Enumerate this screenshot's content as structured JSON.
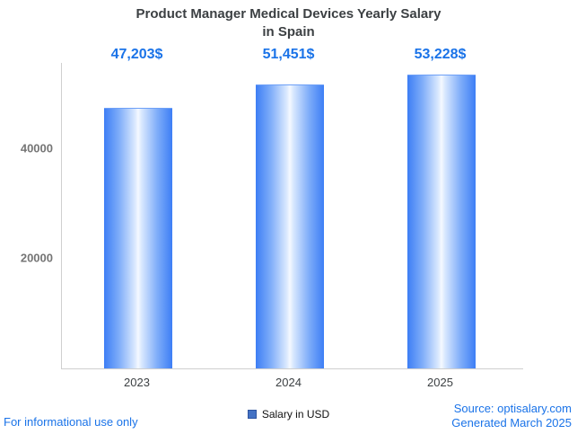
{
  "title": {
    "line1": "Product Manager Medical Devices Yearly Salary",
    "line2": "in Spain"
  },
  "chart_data": {
    "type": "bar",
    "title": "Product Manager Medical Devices Yearly Salary in Spain",
    "categories": [
      "2023",
      "2024",
      "2025"
    ],
    "values": [
      47203,
      51451,
      53228
    ],
    "value_labels": [
      "47,203$",
      "51,451$",
      "53,228$"
    ],
    "xlabel": "",
    "ylabel": "",
    "ylim": [
      0,
      55500
    ],
    "yticks": [
      20000,
      40000
    ],
    "ytick_labels": [
      "20000",
      "40000"
    ],
    "grid": false,
    "legend_position": "bottom",
    "legend": [
      "Salary in USD"
    ],
    "bar_gradient": [
      "#3d7ef5",
      "#f5f9ff",
      "#3d7ef5"
    ],
    "value_label_color": "#1a73e8"
  },
  "legend": {
    "label": "Salary in USD",
    "swatch_color": "#4472c4"
  },
  "footer": {
    "disclaimer": "For informational use only",
    "source": "Source: optisalary.com",
    "generated": "Generated March 2025"
  },
  "colors": {
    "accent_blue": "#1a73e8",
    "axis_gray": "#cfcfcf",
    "tick_text": "#757575",
    "title_text": "#3c4043"
  }
}
